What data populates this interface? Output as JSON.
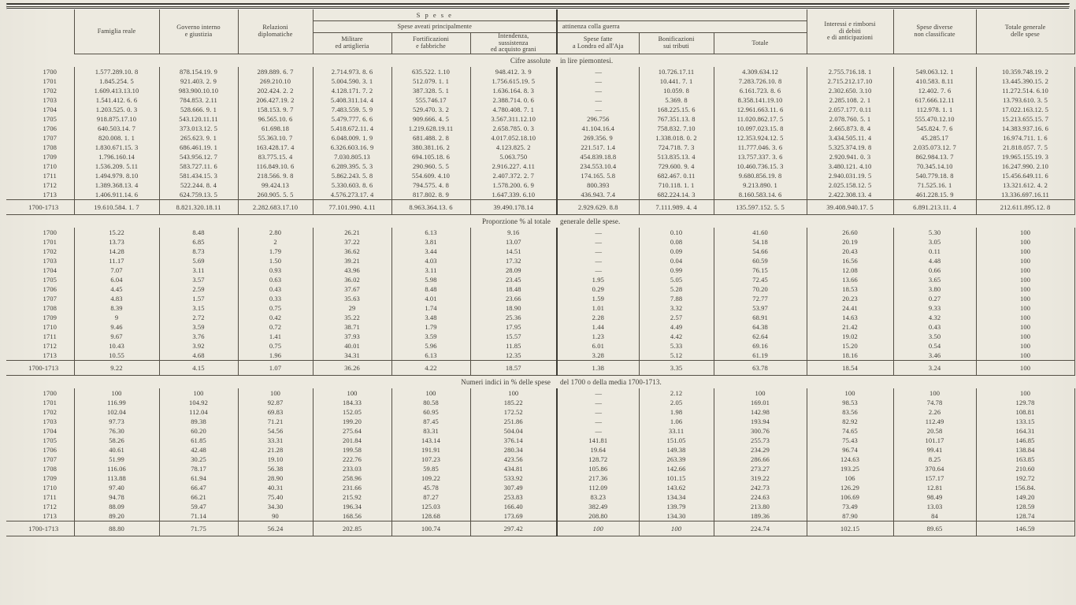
{
  "columns": {
    "c1": "Famiglia reale",
    "c2": "Governo interno\ne giustizia",
    "c3": "Relazioni\ndiplomatiche",
    "c4": "Militare\ned artiglieria",
    "c5": "Fortificazioni\ne fabbriche",
    "c6": "Intendenza,\nsussistenza\ned acquisto grani",
    "c7": "Spese fatte\na Londra ed all'Aja",
    "c8": "Bonificazioni\nsui tributi",
    "c9": "Totale",
    "c10": "Interessi e rimborsi\ndi debiti\ne di anticipazioni",
    "c11": "Spese diverse\nnon classificate",
    "c12": "Totale generale\ndelle spese",
    "group_spese": "Spese aveati principalmente",
    "group_att": "attinenza colla guerra",
    "super": "S p e s e"
  },
  "sections": [
    {
      "left": "Cifre assolute",
      "right": "in lire piemontesi.",
      "rows": [
        [
          "1700",
          "1.577.289.10. 8",
          "878.154.19. 9",
          "289.889. 6. 7",
          "2.714.973. 8. 6",
          "635.522. 1.10",
          "948.412. 3. 9",
          "—",
          "10.726.17.11",
          "4.309.634.12",
          "2.755.716.18. 1",
          "549.063.12. 1",
          "10.359.748.19. 2"
        ],
        [
          "1701",
          "1.845.254. 5",
          "921.403. 2. 9",
          "269.210.10",
          "5.004.590. 3. 1",
          "512.079. 1. 1",
          "1.756.615.19. 5",
          "—",
          "10.441. 7. 1",
          "7.283.726.10. 8",
          "2.715.212.17.10",
          "410.583. 8.11",
          "13.445.390.15. 2"
        ],
        [
          "1702",
          "1.609.413.13.10",
          "983.900.10.10",
          "202.424. 2. 2",
          "4.128.171. 7. 2",
          "387.328. 5. 1",
          "1.636.164. 8. 3",
          "—",
          "10.059. 8",
          "6.161.723. 8. 6",
          "2.302.650. 3.10",
          "12.402. 7. 6",
          "11.272.514. 6.10"
        ],
        [
          "1703",
          "1.541.412. 6. 6",
          "784.853. 2.11",
          "206.427.19. 2",
          "5.408.311.14. 4",
          "555.746.17",
          "2.388.714. 0. 6",
          "—",
          "5.369. 8",
          "8.358.141.19.10",
          "2.285.108. 2. 1",
          "617.666.12.11",
          "13.793.610. 3. 5"
        ],
        [
          "1704",
          "1.203.525. 0. 3",
          "528.666. 9. 1",
          "158.153. 9. 7",
          "7.483.559. 5. 9",
          "529.470. 3. 2",
          "4.780.408. 7. 1",
          "—",
          "168.225.15. 6",
          "12.961.663.11. 6",
          "2.057.177. 0.11",
          "112.978. 1. 1",
          "17.022.163.12. 5"
        ],
        [
          "1705",
          "918.875.17.10",
          "543.120.11.11",
          "96.565.10. 6",
          "5.479.777. 6. 6",
          "909.666. 4. 5",
          "3.567.311.12.10",
          "296.756",
          "767.351.13. 8",
          "11.020.862.17. 5",
          "2.078.760. 5. 1",
          "555.470.12.10",
          "15.213.655.15. 7"
        ],
        [
          "1706",
          "640.503.14. 7",
          "373.013.12. 5",
          "61.698.18",
          "5.418.672.11. 4",
          "1.219.628.19.11",
          "2.658.785. 0. 3",
          "41.104.16.4",
          "758.832. 7.10",
          "10.097.023.15. 8",
          "2.665.873. 8. 4",
          "545.824. 7. 6",
          "14.383.937.16. 6"
        ],
        [
          "1707",
          "820.008. 1. 1",
          "265.623. 9. 1",
          "55.363.10. 7",
          "6.048.009. 1. 9",
          "681.488. 2. 8",
          "4.017.052.18.10",
          "269.356. 9",
          "1.338.018. 0. 2",
          "12.353.924.12. 5",
          "3.434.505.11. 4",
          "45.285.17",
          "16.974.711. 1. 6"
        ],
        [
          "1708",
          "1.830.671.15. 3",
          "686.461.19. 1",
          "163.428.17. 4",
          "6.326.603.16. 9",
          "380.381.16. 2",
          "4.123.825. 2",
          "221.517. 1.4",
          "724.718. 7. 3",
          "11.777.046. 3. 6",
          "5.325.374.19. 8",
          "2.035.073.12. 7",
          "21.818.057. 7. 5"
        ],
        [
          "1709",
          "1.796.160.14",
          "543.956.12. 7",
          "83.775.15. 4",
          "7.030.805.13",
          "694.105.18. 6",
          "5.063.750",
          "454.839.18.8",
          "513.835.13. 4",
          "13.757.337. 3. 6",
          "2.920.941. 0. 3",
          "862.984.13. 7",
          "19.965.155.19. 3"
        ],
        [
          "1710",
          "1.536.209. 5.11",
          "583.727.11. 6",
          "116.849.10. 6",
          "6.289.395. 5. 3",
          "290.960. 5. 5",
          "2.916.227. 4.11",
          "234.553.10.4",
          "729.600. 9. 4",
          "10.460.736.15. 3",
          "3.480.121. 4.10",
          "70.345.14.10",
          "16.247.990. 2.10"
        ],
        [
          "1711",
          "1.494.979. 8.10",
          "581.434.15. 3",
          "218.566. 9. 8",
          "5.862.243. 5. 8",
          "554.609. 4.10",
          "2.407.372. 2. 7",
          "174.165. 5.8",
          "682.467. 0.11",
          "9.680.856.19. 8",
          "2.940.031.19. 5",
          "540.779.18. 8",
          "15.456.649.11. 6"
        ],
        [
          "1712",
          "1.389.368.13. 4",
          "522.244. 8. 4",
          "99.424.13",
          "5.330.603. 8. 6",
          "794.575. 4. 8",
          "1.578.200. 6. 9",
          "800.393",
          "710.118. 1. 1",
          "9.213.890. 1",
          "2.025.158.12. 5",
          "71.525.16. 1",
          "13.321.612. 4. 2"
        ],
        [
          "1713",
          "1.406.911.14. 6",
          "624.759.13. 5",
          "260.905. 5. 5",
          "4.576.273.17. 4",
          "817.802. 8. 9",
          "1.647.339. 6.10",
          "436.943. 7.4",
          "682.224.14. 3",
          "8.160.583.14. 6",
          "2.422.308.13. 4",
          "461.228.15. 9",
          "13.336.697.16.11"
        ]
      ],
      "total": [
        "1700-1713",
        "19.610.584. 1. 7",
        "8.821.320.18.11",
        "2.282.683.17.10",
        "77.101.990. 4.11",
        "8.963.364.13. 6",
        "39.490.178.14",
        "2.929.629. 8.8",
        "7.111.989. 4. 4",
        "135.597.152. 5. 5",
        "39.408.940.17. 5",
        "6.891.213.11. 4",
        "212.611.895.12. 8"
      ]
    },
    {
      "left": "Proporzione % al totale",
      "right": "generale delle spese.",
      "rows": [
        [
          "1700",
          "15.22",
          "8.48",
          "2.80",
          "26.21",
          "6.13",
          "9.16",
          "—",
          "0.10",
          "41.60",
          "26.60",
          "5.30",
          "100"
        ],
        [
          "1701",
          "13.73",
          "6.85",
          "2",
          "37.22",
          "3.81",
          "13.07",
          "—",
          "0.08",
          "54.18",
          "20.19",
          "3.05",
          "100"
        ],
        [
          "1702",
          "14.28",
          "8.73",
          "1.79",
          "36.62",
          "3.44",
          "14.51",
          "—",
          "0.09",
          "54.66",
          "20.43",
          "0.11",
          "100"
        ],
        [
          "1703",
          "11.17",
          "5.69",
          "1.50",
          "39.21",
          "4.03",
          "17.32",
          "—",
          "0.04",
          "60.59",
          "16.56",
          "4.48",
          "100"
        ],
        [
          "1704",
          "7.07",
          "3.11",
          "0.93",
          "43.96",
          "3.11",
          "28.09",
          "—",
          "0.99",
          "76.15",
          "12.08",
          "0.66",
          "100"
        ],
        [
          "1705",
          "6.04",
          "3.57",
          "0.63",
          "36.02",
          "5.98",
          "23.45",
          "1.95",
          "5.05",
          "72.45",
          "13.66",
          "3.65",
          "100"
        ],
        [
          "1706",
          "4.45",
          "2.59",
          "0.43",
          "37.67",
          "8.48",
          "18.48",
          "0.29",
          "5.28",
          "70.20",
          "18.53",
          "3.80",
          "100"
        ],
        [
          "1707",
          "4.83",
          "1.57",
          "0.33",
          "35.63",
          "4.01",
          "23.66",
          "1.59",
          "7.88",
          "72.77",
          "20.23",
          "0.27",
          "100"
        ],
        [
          "1708",
          "8.39",
          "3.15",
          "0.75",
          "29",
          "1.74",
          "18.90",
          "1.01",
          "3.32",
          "53.97",
          "24.41",
          "9.33",
          "100"
        ],
        [
          "1709",
          "9",
          "2.72",
          "0.42",
          "35.22",
          "3.48",
          "25.36",
          "2.28",
          "2.57",
          "68.91",
          "14.63",
          "4.32",
          "100"
        ],
        [
          "1710",
          "9.46",
          "3.59",
          "0.72",
          "38.71",
          "1.79",
          "17.95",
          "1.44",
          "4.49",
          "64.38",
          "21.42",
          "0.43",
          "100"
        ],
        [
          "1711",
          "9.67",
          "3.76",
          "1.41",
          "37.93",
          "3.59",
          "15.57",
          "1.23",
          "4.42",
          "62.64",
          "19.02",
          "3.50",
          "100"
        ],
        [
          "1712",
          "10.43",
          "3.92",
          "0.75",
          "40.01",
          "5.96",
          "11.85",
          "6.01",
          "5.33",
          "69.16",
          "15.20",
          "0.54",
          "100"
        ],
        [
          "1713",
          "10.55",
          "4.68",
          "1.96",
          "34.31",
          "6.13",
          "12.35",
          "3.28",
          "5.12",
          "61.19",
          "18.16",
          "3.46",
          "100"
        ]
      ],
      "total": [
        "1700-1713",
        "9.22",
        "4.15",
        "1.07",
        "36.26",
        "4.22",
        "18.57",
        "1.38",
        "3.35",
        "63.78",
        "18.54",
        "3.24",
        "100"
      ]
    },
    {
      "left": "Numeri indici in % delle spese",
      "right": "del 1700 o della media 1700-1713.",
      "rows": [
        [
          "1700",
          "100",
          "100",
          "100",
          "100",
          "100",
          "100",
          "—",
          "2.12",
          "100",
          "100",
          "100",
          "100"
        ],
        [
          "1701",
          "116.99",
          "104.92",
          "92.87",
          "184.33",
          "80.58",
          "185.22",
          "—",
          "2.05",
          "169.01",
          "98.53",
          "74.78",
          "129.78"
        ],
        [
          "1702",
          "102.04",
          "112.04",
          "69.83",
          "152.05",
          "60.95",
          "172.52",
          "—",
          "1.98",
          "142.98",
          "83.56",
          "2.26",
          "108.81"
        ],
        [
          "1703",
          "97.73",
          "89.38",
          "71.21",
          "199.20",
          "87.45",
          "251.86",
          "—",
          "1.06",
          "193.94",
          "82.92",
          "112.49",
          "133.15"
        ],
        [
          "1704",
          "76.30",
          "60.20",
          "54.56",
          "275.64",
          "83.31",
          "504.04",
          "—",
          "33.11",
          "300.76",
          "74.65",
          "20.58",
          "164.31"
        ],
        [
          "1705",
          "58.26",
          "61.85",
          "33.31",
          "201.84",
          "143.14",
          "376.14",
          "141.81",
          "151.05",
          "255.73",
          "75.43",
          "101.17",
          "146.85"
        ],
        [
          "1706",
          "40.61",
          "42.48",
          "21.28",
          "199.58",
          "191.91",
          "280.34",
          "19.64",
          "149.38",
          "234.29",
          "96.74",
          "99.41",
          "138.84"
        ],
        [
          "1707",
          "51.99",
          "30.25",
          "19.10",
          "222.76",
          "107.23",
          "423.56",
          "128.72",
          "263.39",
          "286.66",
          "124.63",
          "8.25",
          "163.85"
        ],
        [
          "1708",
          "116.06",
          "78.17",
          "56.38",
          "233.03",
          "59.85",
          "434.81",
          "105.86",
          "142.66",
          "273.27",
          "193.25",
          "370.64",
          "210.60"
        ],
        [
          "1709",
          "113.88",
          "61.94",
          "28.90",
          "258.96",
          "109.22",
          "533.92",
          "217.36",
          "101.15",
          "319.22",
          "106",
          "157.17",
          "192.72"
        ],
        [
          "1710",
          "97.40",
          "66.47",
          "40.31",
          "231.66",
          "45.78",
          "307.49",
          "112.09",
          "143.62",
          "242.73",
          "126.29",
          "12.81",
          "156.84."
        ],
        [
          "1711",
          "94.78",
          "66.21",
          "75.40",
          "215.92",
          "87.27",
          "253.83",
          "83.23",
          "134.34",
          "224.63",
          "106.69",
          "98.49",
          "149.20"
        ],
        [
          "1712",
          "88.09",
          "59.47",
          "34.30",
          "196.34",
          "125.03",
          "166.40",
          "382.49",
          "139.79",
          "213.80",
          "73.49",
          "13.03",
          "128.59"
        ],
        [
          "1713",
          "89.20",
          "71.14",
          "90",
          "168.56",
          "128.68",
          "173.69",
          "208.80",
          "134.30",
          "189.36",
          "87.90",
          "84",
          "128.74"
        ]
      ],
      "total": [
        "1700-1713",
        "88.80",
        "71.75",
        "56.24",
        "202.85",
        "100.74",
        "297.42",
        "100",
        "100",
        "224.74",
        "102.15",
        "89.65",
        "146.59"
      ]
    }
  ]
}
